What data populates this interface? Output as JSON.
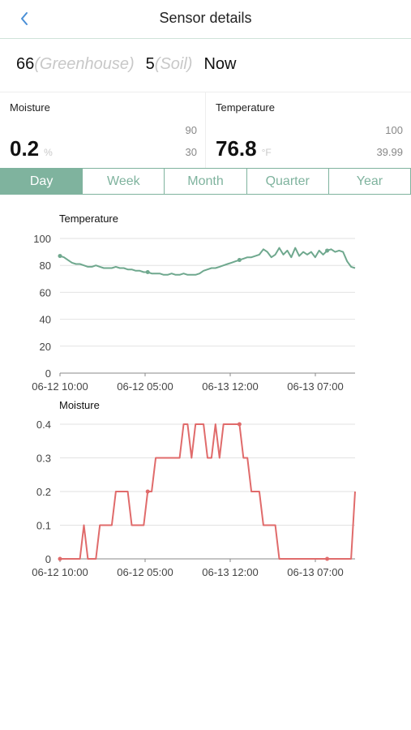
{
  "header": {
    "title": "Sensor details",
    "back_icon": "chevron-left-icon"
  },
  "sensor": {
    "id": "66",
    "location": "(Greenhouse)",
    "channel": "5",
    "channel_type": "(Soil)",
    "time": "Now"
  },
  "moisture": {
    "label": "Moisture",
    "value": "0.2",
    "unit": "%",
    "max": "90",
    "min": "30"
  },
  "temperature": {
    "label": "Temperature",
    "value": "76.8",
    "unit": "°F",
    "max": "100",
    "min": "39.99"
  },
  "tabs": [
    {
      "label": "Day"
    },
    {
      "label": "Week"
    },
    {
      "label": "Month"
    },
    {
      "label": "Quarter"
    },
    {
      "label": "Year"
    }
  ],
  "active_tab": 0,
  "colors": {
    "accent": "#7fb39e",
    "temp_line": "#6fa88e",
    "moist_line": "#e06b6b"
  },
  "chart_data": [
    {
      "type": "line",
      "title": "Temperature",
      "x_ticks": [
        "06-12 10:00",
        "06-12 05:00",
        "06-13 12:00",
        "06-13 07:00"
      ],
      "ylim": [
        0,
        100
      ],
      "y_ticks": [
        0,
        20,
        40,
        60,
        80,
        100
      ],
      "grid": true,
      "series": [
        {
          "values": [
            87,
            86,
            84,
            82,
            81,
            81,
            80,
            79,
            79,
            80,
            79,
            78,
            78,
            78,
            79,
            78,
            78,
            77,
            77,
            76,
            76,
            75,
            75,
            74,
            74,
            74,
            73,
            73,
            74,
            73,
            73,
            74,
            73,
            73,
            73,
            74,
            76,
            77,
            78,
            78,
            79,
            80,
            81,
            82,
            83,
            84,
            85,
            86,
            86,
            87,
            88,
            92,
            90,
            86,
            88,
            93,
            88,
            91,
            86,
            93,
            87,
            90,
            88,
            90,
            86,
            91,
            88,
            91,
            92,
            90,
            91,
            90,
            83,
            79,
            78
          ]
        }
      ],
      "markers": [
        {
          "index": 0
        },
        {
          "index": 22
        },
        {
          "index": 45
        },
        {
          "index": 67
        }
      ]
    },
    {
      "type": "line",
      "title": "Moisture",
      "x_ticks": [
        "06-12 10:00",
        "06-12 05:00",
        "06-13 12:00",
        "06-13 07:00"
      ],
      "ylim": [
        0,
        0.4
      ],
      "y_ticks": [
        "0",
        "0.1",
        "0.2",
        "0.3",
        "0.4"
      ],
      "grid": true,
      "series": [
        {
          "values": [
            0,
            0,
            0,
            0,
            0,
            0,
            0.1,
            0,
            0,
            0,
            0.1,
            0.1,
            0.1,
            0.1,
            0.2,
            0.2,
            0.2,
            0.2,
            0.1,
            0.1,
            0.1,
            0.1,
            0.2,
            0.2,
            0.3,
            0.3,
            0.3,
            0.3,
            0.3,
            0.3,
            0.3,
            0.4,
            0.4,
            0.3,
            0.4,
            0.4,
            0.4,
            0.3,
            0.3,
            0.4,
            0.3,
            0.4,
            0.4,
            0.4,
            0.4,
            0.4,
            0.3,
            0.3,
            0.2,
            0.2,
            0.2,
            0.1,
            0.1,
            0.1,
            0.1,
            0,
            0,
            0,
            0,
            0,
            0,
            0,
            0,
            0,
            0,
            0,
            0,
            0,
            0,
            0,
            0,
            0,
            0,
            0,
            0.2
          ]
        }
      ],
      "markers": [
        {
          "index": 0
        },
        {
          "index": 22
        },
        {
          "index": 45
        },
        {
          "index": 67
        }
      ]
    }
  ]
}
